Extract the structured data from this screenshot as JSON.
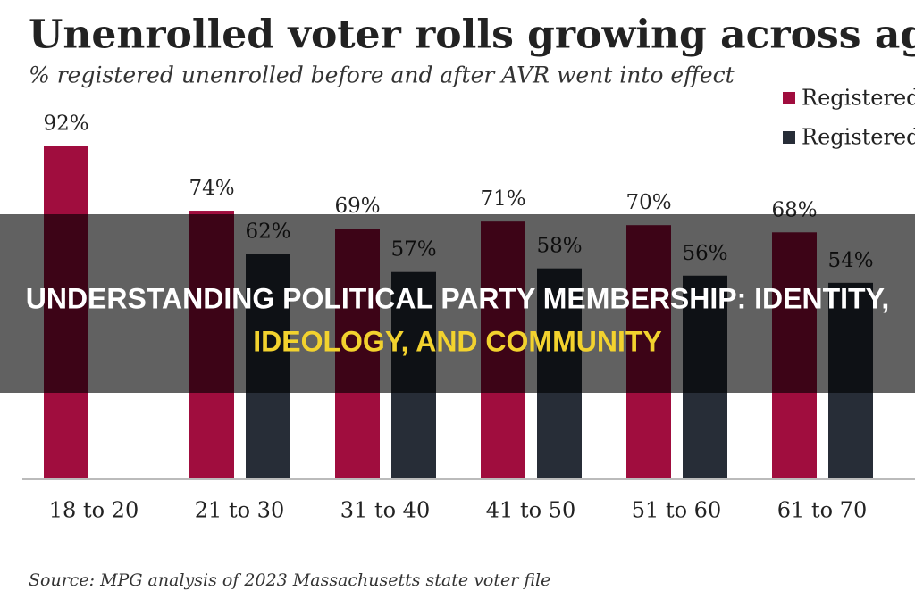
{
  "chart_data": {
    "type": "bar",
    "title": "Unenrolled voter rolls growing across age gro",
    "subtitle": "% registered unenrolled before and after AVR went into effect",
    "source": "Source: MPG analysis of 2023 Massachusetts state voter file",
    "categories": [
      "18 to 20",
      "21 to 30",
      "31 to 40",
      "41 to 50",
      "51 to 60",
      "61 to 70"
    ],
    "series": [
      {
        "name": "Registered",
        "color": "#a00d3e",
        "values": [
          92,
          74,
          69,
          71,
          70,
          68
        ],
        "value_labels": [
          "92%",
          "74%",
          "69%",
          "71%",
          "70%",
          "68%"
        ]
      },
      {
        "name": "Registered",
        "color": "#272d37",
        "values": [
          null,
          62,
          57,
          58,
          56,
          54
        ],
        "value_labels": [
          null,
          "62%",
          "57%",
          "58%",
          "56%",
          "54%"
        ]
      }
    ],
    "legend": "top-right"
  },
  "banner": {
    "lines": [
      "UNDERSTANDING POLITICAL PARTY MEMBERSHIP: IDENTITY,",
      "IDEOLOGY, AND COMMUNITY"
    ]
  }
}
